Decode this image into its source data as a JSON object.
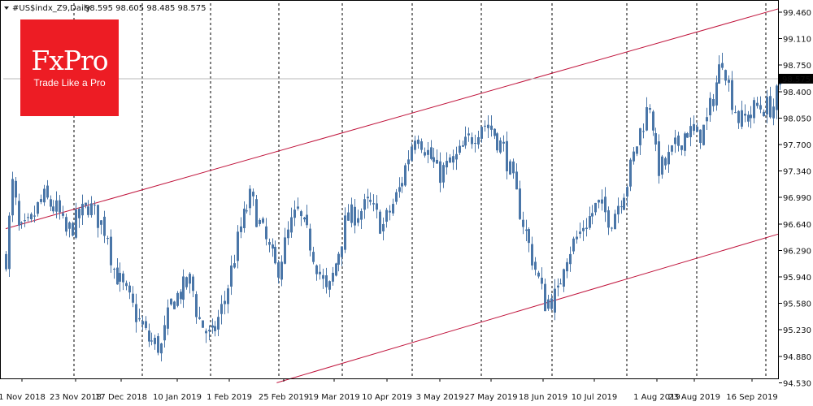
{
  "chart_header": {
    "symbol_info": "#US$indx_Z9,Daily",
    "ohlc": "98.595 98.605 98.485 98.575"
  },
  "logo": {
    "main": "FxPro",
    "tagline": "Trade Like a Pro"
  },
  "colors": {
    "candle": "#4a76a8",
    "channel_line": "#c0143c",
    "current_price_line": "#b8b8b8",
    "price_tag": "#000000",
    "grid": "#000000",
    "logo_bg": "#ed1c24"
  },
  "chart_data": {
    "type": "candlestick",
    "title": "",
    "y_ticks": [
      "99.460",
      "99.110",
      "98.750",
      "98.400",
      "98.050",
      "97.700",
      "97.340",
      "96.990",
      "96.640",
      "96.290",
      "95.940",
      "95.580",
      "95.230",
      "94.880",
      "94.530"
    ],
    "ylim": [
      94.53,
      99.46
    ],
    "x_ticks": [
      "1 Nov 2018",
      "23 Nov 2018",
      "17 Dec 2018",
      "10 Jan 2019",
      "1 Feb 2019",
      "25 Feb 2019",
      "19 Mar 2019",
      "10 Apr 2019",
      "3 May 2019",
      "27 May 2019",
      "18 Jun 2019",
      "10 Jul 2019",
      "1 Aug 2019",
      "23 Aug 2019",
      "16 Sep 2019"
    ],
    "current_price": "98.575",
    "channel": {
      "upper": [
        [
          "1 Nov 2018",
          96.58
        ],
        [
          "16 Sep 2019",
          99.42
        ]
      ],
      "lower": [
        [
          "25 Feb 2019",
          94.53
        ],
        [
          "16 Sep 2019",
          96.42
        ]
      ]
    },
    "anchor_closes": [
      [
        "1 Nov 2018",
        96.2
      ],
      [
        "3 Nov 2018",
        97.2
      ],
      [
        "7 Nov 2018",
        96.5
      ],
      [
        "11 Nov 2018",
        96.6
      ],
      [
        "16 Nov 2018",
        97.0
      ],
      [
        "23 Nov 2018",
        96.8
      ],
      [
        "27 Nov 2018",
        96.5
      ],
      [
        "6 Dec 2018",
        96.9
      ],
      [
        "14 Dec 2018",
        96.5
      ],
      [
        "17 Dec 2018",
        96.1
      ],
      [
        "1 Jan 2019",
        95.1
      ],
      [
        "5 Jan 2019",
        95.0
      ],
      [
        "10 Jan 2019",
        95.6
      ],
      [
        "18 Jan 2019",
        95.9
      ],
      [
        "22 Jan 2019",
        95.4
      ],
      [
        "27 Jan 2019",
        95.1
      ],
      [
        "1 Feb 2019",
        95.6
      ],
      [
        "8 Feb 2019",
        96.6
      ],
      [
        "13 Feb 2019",
        97.0
      ],
      [
        "18 Feb 2019",
        96.6
      ],
      [
        "25 Feb 2019",
        96.0
      ],
      [
        "1 Mar 2019",
        96.6
      ],
      [
        "5 Mar 2019",
        96.8
      ],
      [
        "10 Mar 2019",
        96.4
      ],
      [
        "16 Mar 2019",
        95.7
      ],
      [
        "19 Mar 2019",
        95.8
      ],
      [
        "26 Mar 2019",
        96.7
      ],
      [
        "4 Apr 2019",
        96.9
      ],
      [
        "10 Apr 2019",
        96.6
      ],
      [
        "17 Apr 2019",
        97.1
      ],
      [
        "24 Apr 2019",
        97.9
      ],
      [
        "3 May 2019",
        97.3
      ],
      [
        "10 May 2019",
        97.5
      ],
      [
        "17 May 2019",
        97.8
      ],
      [
        "22 May 2019",
        98.0
      ],
      [
        "27 May 2019",
        97.9
      ],
      [
        "31 May 2019",
        97.6
      ],
      [
        "6 Jun 2019",
        96.9
      ],
      [
        "11 Jun 2019",
        96.4
      ],
      [
        "18 Jun 2019",
        95.6
      ],
      [
        "22 Jun 2019",
        95.7
      ],
      [
        "26 Jun 2019",
        96.2
      ],
      [
        "10 Jul 2019",
        96.9
      ],
      [
        "16 Jul 2019",
        96.7
      ],
      [
        "23 Jul 2019",
        97.2
      ],
      [
        "27 Jul 2019",
        97.9
      ],
      [
        "1 Aug 2019",
        98.3
      ],
      [
        "4 Aug 2019",
        97.4
      ],
      [
        "7 Aug 2019",
        97.4
      ],
      [
        "16 Aug 2019",
        97.9
      ],
      [
        "21 Aug 2019",
        97.8
      ],
      [
        "23 Aug 2019",
        97.9
      ],
      [
        "26 Aug 2019",
        98.0
      ],
      [
        "31 Aug 2019",
        98.9
      ],
      [
        "4 Sep 2019",
        98.4
      ],
      [
        "8 Sep 2019",
        98.0
      ],
      [
        "12 Sep 2019",
        98.1
      ],
      [
        "16 Sep 2019",
        98.2
      ],
      [
        "23 Sep 2019",
        98.2
      ],
      [
        "26 Sep 2019",
        98.57
      ]
    ]
  }
}
